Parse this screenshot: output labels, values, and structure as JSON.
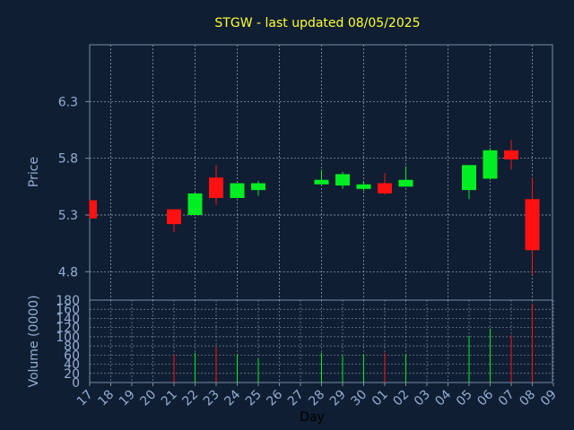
{
  "title": "STGW - last updated 08/05/2025",
  "colors": {
    "background": "#0f1e32",
    "plot_border": "#7a8ea8",
    "grid": "#c8d2e0",
    "up": "#00ee22",
    "down": "#ff1111",
    "title": "#ffff33",
    "tick": "#93aed3"
  },
  "chart_data": [
    {
      "type": "candlestick",
      "ylabel": "Price",
      "ylim": [
        4.55,
        6.8
      ],
      "yticks": [
        4.8,
        5.3,
        5.8,
        6.3
      ],
      "grid": true,
      "candles": [
        {
          "day": "17",
          "open": 5.43,
          "close": 5.27,
          "high": 5.43,
          "low": 5.27
        },
        {
          "day": "21",
          "open": 5.35,
          "close": 5.22,
          "high": 5.35,
          "low": 5.15
        },
        {
          "day": "22",
          "open": 5.3,
          "close": 5.49,
          "high": 5.49,
          "low": 5.3
        },
        {
          "day": "23",
          "open": 5.63,
          "close": 5.45,
          "high": 5.74,
          "low": 5.39
        },
        {
          "day": "24",
          "open": 5.45,
          "close": 5.58,
          "high": 5.58,
          "low": 5.45
        },
        {
          "day": "25",
          "open": 5.52,
          "close": 5.58,
          "high": 5.6,
          "low": 5.47
        },
        {
          "day": "28",
          "open": 5.57,
          "close": 5.61,
          "high": 5.7,
          "low": 5.57
        },
        {
          "day": "29",
          "open": 5.56,
          "close": 5.66,
          "high": 5.68,
          "low": 5.53
        },
        {
          "day": "30",
          "open": 5.53,
          "close": 5.57,
          "high": 5.6,
          "low": 5.51
        },
        {
          "day": "01",
          "open": 5.58,
          "close": 5.49,
          "high": 5.67,
          "low": 5.48
        },
        {
          "day": "02",
          "open": 5.55,
          "close": 5.61,
          "high": 5.73,
          "low": 5.55
        },
        {
          "day": "05",
          "open": 5.52,
          "close": 5.74,
          "high": 5.74,
          "low": 5.44
        },
        {
          "day": "06",
          "open": 5.62,
          "close": 5.87,
          "high": 5.89,
          "low": 5.61
        },
        {
          "day": "07",
          "open": 5.87,
          "close": 5.79,
          "high": 5.96,
          "low": 5.7
        },
        {
          "day": "08",
          "open": 5.44,
          "close": 4.99,
          "high": 5.63,
          "low": 4.77
        }
      ]
    },
    {
      "type": "bar",
      "ylabel": "Volume (0000)",
      "xlabel": "Day",
      "ylim": [
        0,
        180
      ],
      "yticks": [
        0,
        20,
        40,
        60,
        80,
        100,
        120,
        140,
        160,
        180
      ],
      "grid": true,
      "x_tick_labels": [
        "17",
        "18",
        "19",
        "20",
        "21",
        "22",
        "23",
        "24",
        "25",
        "26",
        "27",
        "28",
        "29",
        "30",
        "01",
        "02",
        "03",
        "04",
        "05",
        "06",
        "07",
        "08",
        "09"
      ],
      "volumes": [
        {
          "day": "17",
          "value": 0,
          "dir": "up"
        },
        {
          "day": "21",
          "value": 62,
          "dir": "down"
        },
        {
          "day": "22",
          "value": 65,
          "dir": "up"
        },
        {
          "day": "23",
          "value": 78,
          "dir": "down"
        },
        {
          "day": "24",
          "value": 62,
          "dir": "up"
        },
        {
          "day": "25",
          "value": 52,
          "dir": "up"
        },
        {
          "day": "28",
          "value": 65,
          "dir": "up"
        },
        {
          "day": "29",
          "value": 58,
          "dir": "up"
        },
        {
          "day": "30",
          "value": 62,
          "dir": "up"
        },
        {
          "day": "01",
          "value": 65,
          "dir": "down"
        },
        {
          "day": "02",
          "value": 62,
          "dir": "up"
        },
        {
          "day": "05",
          "value": 102,
          "dir": "up"
        },
        {
          "day": "06",
          "value": 118,
          "dir": "up"
        },
        {
          "day": "07",
          "value": 103,
          "dir": "down"
        },
        {
          "day": "08",
          "value": 172,
          "dir": "down"
        }
      ]
    }
  ]
}
